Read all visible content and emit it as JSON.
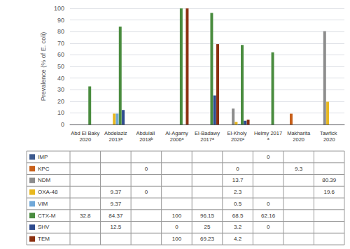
{
  "chart_data": {
    "type": "bar",
    "categories": [
      "Abd El Baky\n2020",
      "Abdelaziz\n2013ᵃ",
      "Abdulall 2018ᵇ",
      "Al-Agamy\n2006ᵃ",
      "El-Badawy\n2017ᵃ",
      "El-Kholy 2020ᶜ",
      "Helmy 2017ᵃ",
      "Makharita\n2020",
      "Tawfick 2020"
    ],
    "series": [
      {
        "name": "IMP",
        "color": "#3d5a8e",
        "values": [
          null,
          null,
          null,
          null,
          null,
          null,
          0,
          null,
          null
        ]
      },
      {
        "name": "KPC",
        "color": "#c8601a",
        "values": [
          null,
          null,
          0,
          null,
          null,
          0,
          null,
          9.3,
          null
        ]
      },
      {
        "name": "NDM",
        "color": "#8c8c8c",
        "values": [
          null,
          null,
          null,
          null,
          null,
          13.7,
          null,
          null,
          80.39
        ]
      },
      {
        "name": "OXA-48",
        "color": "#e8b820",
        "values": [
          null,
          9.37,
          0,
          null,
          null,
          2.3,
          null,
          null,
          19.6
        ]
      },
      {
        "name": "VIM",
        "color": "#70a8d8",
        "values": [
          null,
          9.37,
          null,
          null,
          null,
          0.5,
          0,
          null,
          null
        ]
      },
      {
        "name": "CTX-M",
        "color": "#4a8c3f",
        "values": [
          32.8,
          84.37,
          null,
          100,
          96.15,
          68.5,
          62.16,
          null,
          null
        ]
      },
      {
        "name": "SHV",
        "color": "#2e4b8e",
        "values": [
          null,
          12.5,
          null,
          0,
          25,
          3.2,
          0,
          null,
          null
        ]
      },
      {
        "name": "TEM",
        "color": "#8b3010",
        "values": [
          null,
          null,
          null,
          100,
          69.23,
          4.2,
          null,
          null,
          null
        ]
      }
    ],
    "ylabel": "Prevalence (% of E. coli)",
    "ylim": [
      0,
      100
    ],
    "yticks": [
      0,
      10,
      20,
      30,
      40,
      50,
      60,
      70,
      80,
      90,
      100
    ],
    "grid": true
  }
}
